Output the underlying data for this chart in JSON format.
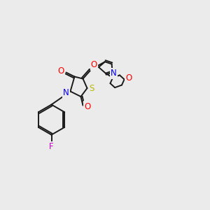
{
  "background_color": "#ebebeb",
  "bond_color": "#1a1a1a",
  "atom_colors": {
    "N": "#0000ee",
    "O": "#ff0000",
    "S": "#b8b800",
    "F": "#cc00cc",
    "H": "#008888"
  },
  "font_size": 8.5,
  "lw": 1.4
}
